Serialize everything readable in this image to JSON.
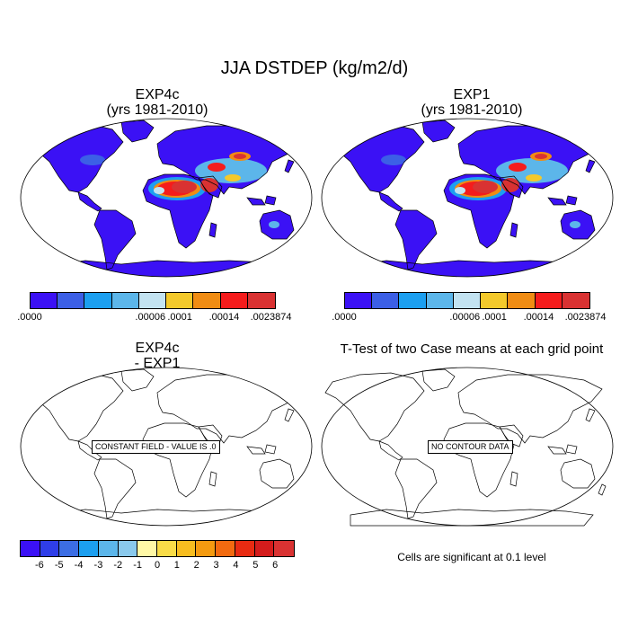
{
  "title": "JJA DSTDEP (kg/m2/d)",
  "panels": {
    "top_left": {
      "title_line1": "EXP4c",
      "title_line2": "(yrs 1981-2010)"
    },
    "top_right": {
      "title_line1": "EXP1",
      "title_line2": "(yrs 1981-2010)"
    },
    "bottom_left": {
      "title_line1": "EXP4c",
      "title_line2": "- EXP1",
      "note": "CONSTANT FIELD - VALUE IS .0"
    },
    "bottom_right": {
      "title": "T-Test of two Case means at each grid point",
      "note": "NO CONTOUR DATA"
    }
  },
  "colorbar_top": {
    "colors": [
      "#3b11f5",
      "#3c5fe6",
      "#1c9ff0",
      "#5cb6ea",
      "#c3e3f1",
      "#f3c92b",
      "#f08c13",
      "#f51c1c",
      "#d93232"
    ],
    "labels": [
      ".0000",
      ".00006",
      ".0001",
      ".00014",
      ".0023874"
    ]
  },
  "colorbar_bottom": {
    "colors": [
      "#3b11f5",
      "#2f3ee8",
      "#3c6de3",
      "#1c9ff0",
      "#5cb6ea",
      "#8ac9ec",
      "#fff8a6",
      "#f9dc48",
      "#f7bd20",
      "#f49a10",
      "#f26a10",
      "#e82b12",
      "#d41c1c",
      "#d93232"
    ],
    "labels": [
      "-6",
      "-5",
      "-4",
      "-3",
      "-2",
      "-1",
      "0",
      "1",
      "2",
      "3",
      "4",
      "5",
      "6"
    ]
  },
  "footnote": "Cells are significant at 0.1 level"
}
